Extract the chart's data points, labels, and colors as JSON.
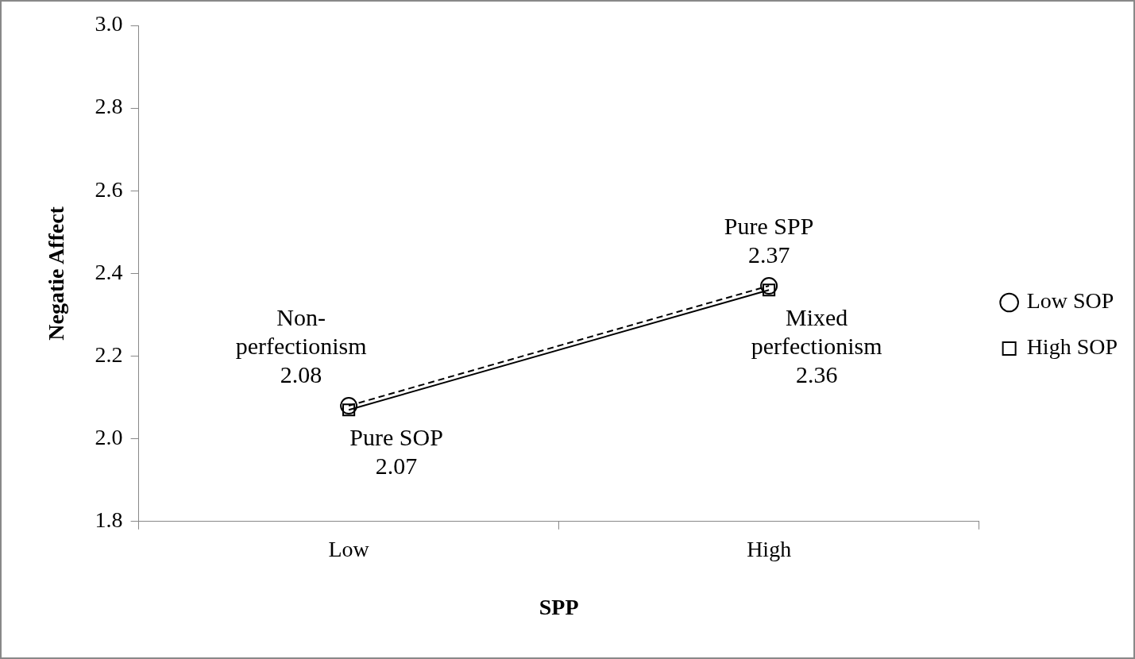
{
  "chart_data": {
    "type": "line",
    "xlabel": "SPP",
    "ylabel": "Negatie Affect",
    "categories": [
      "Low",
      "High"
    ],
    "series": [
      {
        "name": "Low SOP",
        "color": "#000000",
        "values": [
          2.08,
          2.37
        ],
        "marker": "circle",
        "line_style": "dashed"
      },
      {
        "name": "High SOP",
        "color": "#000000",
        "values": [
          2.07,
          2.36
        ],
        "marker": "square",
        "line_style": "solid"
      }
    ],
    "ylim": [
      1.8,
      3.0
    ],
    "yticks": [
      {
        "value": 1.8,
        "label": "1.8"
      },
      {
        "value": 2,
        "label": "2.0"
      },
      {
        "value": 2.2,
        "label": "2.2"
      },
      {
        "value": 2.4,
        "label": "2.4"
      },
      {
        "value": 2.6,
        "label": "2.6"
      },
      {
        "value": 2.8,
        "label": "2.8"
      },
      {
        "value": 3,
        "label": "3.0"
      }
    ],
    "grid": false,
    "legend": "right",
    "annotations": [
      {
        "text": "Non-\nperfectionism\n2.08",
        "x": "Low",
        "y": 2.08
      },
      {
        "text": "Pure SOP\n2.07",
        "x": "Low",
        "y": 2.07
      },
      {
        "text": "Pure SPP\n2.37",
        "x": "High",
        "y": 2.37
      },
      {
        "text": "Mixed\nperfectionism\n2.36",
        "x": "High",
        "y": 2.36
      }
    ]
  }
}
